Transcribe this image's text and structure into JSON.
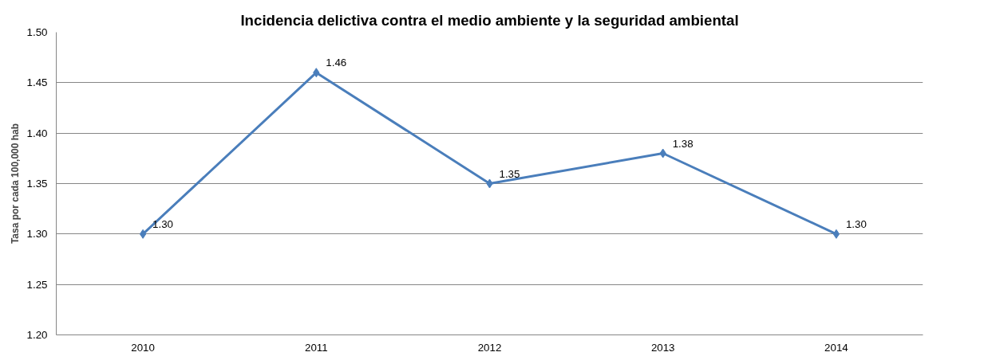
{
  "chart_data": {
    "type": "line",
    "title": "Incidencia delictiva contra el medio ambiente y la seguridad ambiental",
    "ylabel": "Tasa por cada 100,000 hab",
    "categories": [
      "2010",
      "2011",
      "2012",
      "2013",
      "2014"
    ],
    "series": [
      {
        "color": "#4a7ebb",
        "values": [
          1.3,
          1.46,
          1.35,
          1.38,
          1.3
        ],
        "value_labels": [
          "1.30",
          "1.46",
          "1.35",
          "1.38",
          "1.30"
        ]
      }
    ],
    "ylim": [
      1.2,
      1.5
    ],
    "yticks": [
      {
        "value": 1.2,
        "label": "1.20"
      },
      {
        "value": 1.25,
        "label": "1.25"
      },
      {
        "value": 1.3,
        "label": "1.30"
      },
      {
        "value": 1.35,
        "label": "1.35"
      },
      {
        "value": 1.4,
        "label": "1.40"
      },
      {
        "value": 1.45,
        "label": "1.45"
      },
      {
        "value": 1.5,
        "label": "1.50"
      }
    ],
    "grid": "y",
    "marker": "diamond",
    "line_style": "solid"
  }
}
